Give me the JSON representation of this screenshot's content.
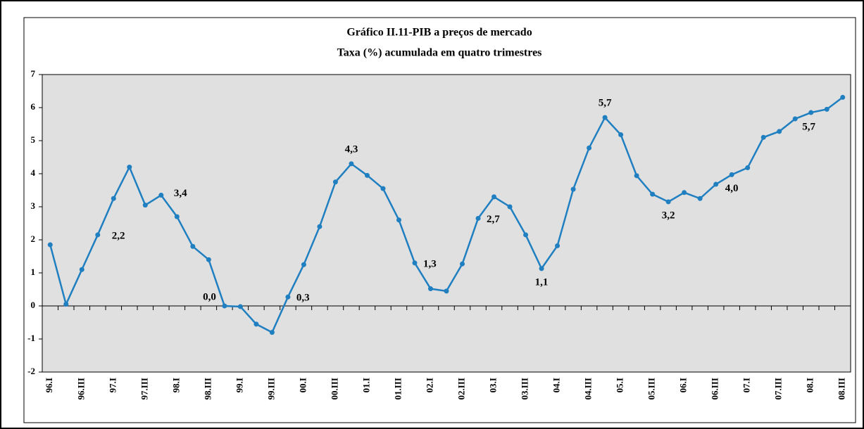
{
  "chart_data": {
    "type": "line",
    "title": "Gráfico II.11-PIB a preços de mercado",
    "subtitle": "Taxa (%) acumulada em quatro trimestres",
    "categories": [
      "96.I",
      null,
      "96.III",
      null,
      "97.I",
      null,
      "97.III",
      null,
      "98.I",
      null,
      "98.III",
      null,
      "99.I",
      null,
      "99.III",
      null,
      "00.I",
      null,
      "00.III",
      null,
      "01.I",
      null,
      "01.III",
      null,
      "02.I",
      null,
      "02.III",
      null,
      "03.I",
      null,
      "03.III",
      null,
      "04.I",
      null,
      "04.III",
      null,
      "05.I",
      null,
      "05.III",
      null,
      "06.I",
      null,
      "06.III",
      null,
      "07.I",
      null,
      "07.III",
      null,
      "08.I",
      null,
      "08.III"
    ],
    "series": [
      {
        "name": "PIB",
        "color": "#1f7fc0",
        "values": [
          1.85,
          0.05,
          1.1,
          2.15,
          3.25,
          4.2,
          3.05,
          3.35,
          2.7,
          1.8,
          1.4,
          0.0,
          -0.02,
          -0.55,
          -0.8,
          0.27,
          1.25,
          2.4,
          3.75,
          4.3,
          3.95,
          3.55,
          2.6,
          1.3,
          0.52,
          0.45,
          1.27,
          2.65,
          3.3,
          3.0,
          2.15,
          1.13,
          1.82,
          3.53,
          4.78,
          5.7,
          5.18,
          3.94,
          3.38,
          3.15,
          3.43,
          3.25,
          3.68,
          3.97,
          4.18,
          5.1,
          5.28,
          5.66,
          5.85,
          5.95,
          6.31
        ],
        "value_labels": [
          null,
          null,
          null,
          "2,2",
          null,
          null,
          null,
          "3,4",
          null,
          null,
          null,
          "0,0",
          null,
          null,
          null,
          "0,3",
          null,
          null,
          null,
          "4,3",
          null,
          null,
          null,
          "1,3",
          null,
          null,
          null,
          "2,7",
          null,
          null,
          null,
          "1,1",
          null,
          null,
          null,
          "5,7",
          null,
          null,
          null,
          "3,2",
          null,
          null,
          null,
          "4,0",
          null,
          null,
          null,
          "5,7",
          null,
          null,
          null
        ]
      }
    ],
    "ylim": [
      -2,
      7
    ],
    "yticks": [
      -2,
      -1,
      0,
      1,
      2,
      3,
      4,
      5,
      6,
      7
    ],
    "grid": false
  }
}
